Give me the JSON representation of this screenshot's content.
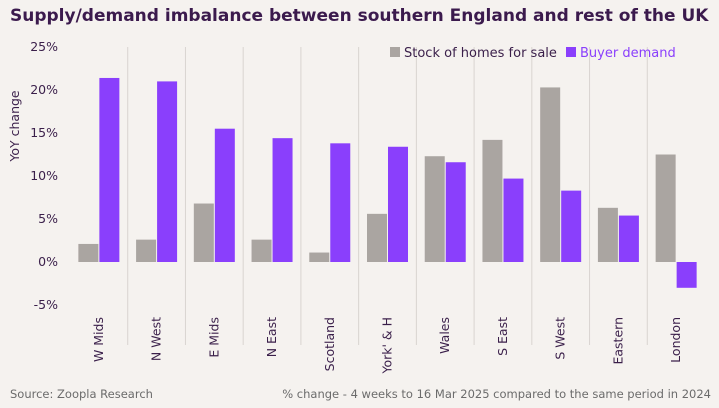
{
  "chart_data": {
    "type": "bar",
    "title": "Supply/demand imbalance between southern England and rest of the UK",
    "ylabel": "YoY change",
    "xlabel": "",
    "ylim": [
      -5,
      25
    ],
    "yticks": [
      -5,
      0,
      5,
      10,
      15,
      20,
      25
    ],
    "ytick_labels": [
      "-5%",
      "0%",
      "5%",
      "10%",
      "15%",
      "20%",
      "25%"
    ],
    "categories": [
      "W Mids",
      "N West",
      "E Mids",
      "N East",
      "Scotland",
      "York' & H",
      "Wales",
      "S East",
      "S West",
      "Eastern",
      "London"
    ],
    "series": [
      {
        "name": "Stock of homes for sale",
        "color": "#aaa5a1",
        "values": [
          2.1,
          2.6,
          6.8,
          2.6,
          1.1,
          5.6,
          12.3,
          14.2,
          20.3,
          6.3,
          12.5
        ]
      },
      {
        "name": "Buyer demand",
        "color": "#8a3ffc",
        "values": [
          21.4,
          21.0,
          15.5,
          14.4,
          13.8,
          13.4,
          11.6,
          9.7,
          8.3,
          5.4,
          -3.0
        ]
      }
    ],
    "legend": "top-right",
    "grid": "vertical-category-separators"
  },
  "footer": {
    "source": "Source: Zoopla Research",
    "note": "% change - 4 weeks to 16 Mar 2025 compared to the same period in 2024"
  },
  "colors": {
    "background": "#f5f2ef",
    "title": "#3b1a4d",
    "axis_text": "#3a1f4a",
    "grid": "#d9d4d0"
  }
}
